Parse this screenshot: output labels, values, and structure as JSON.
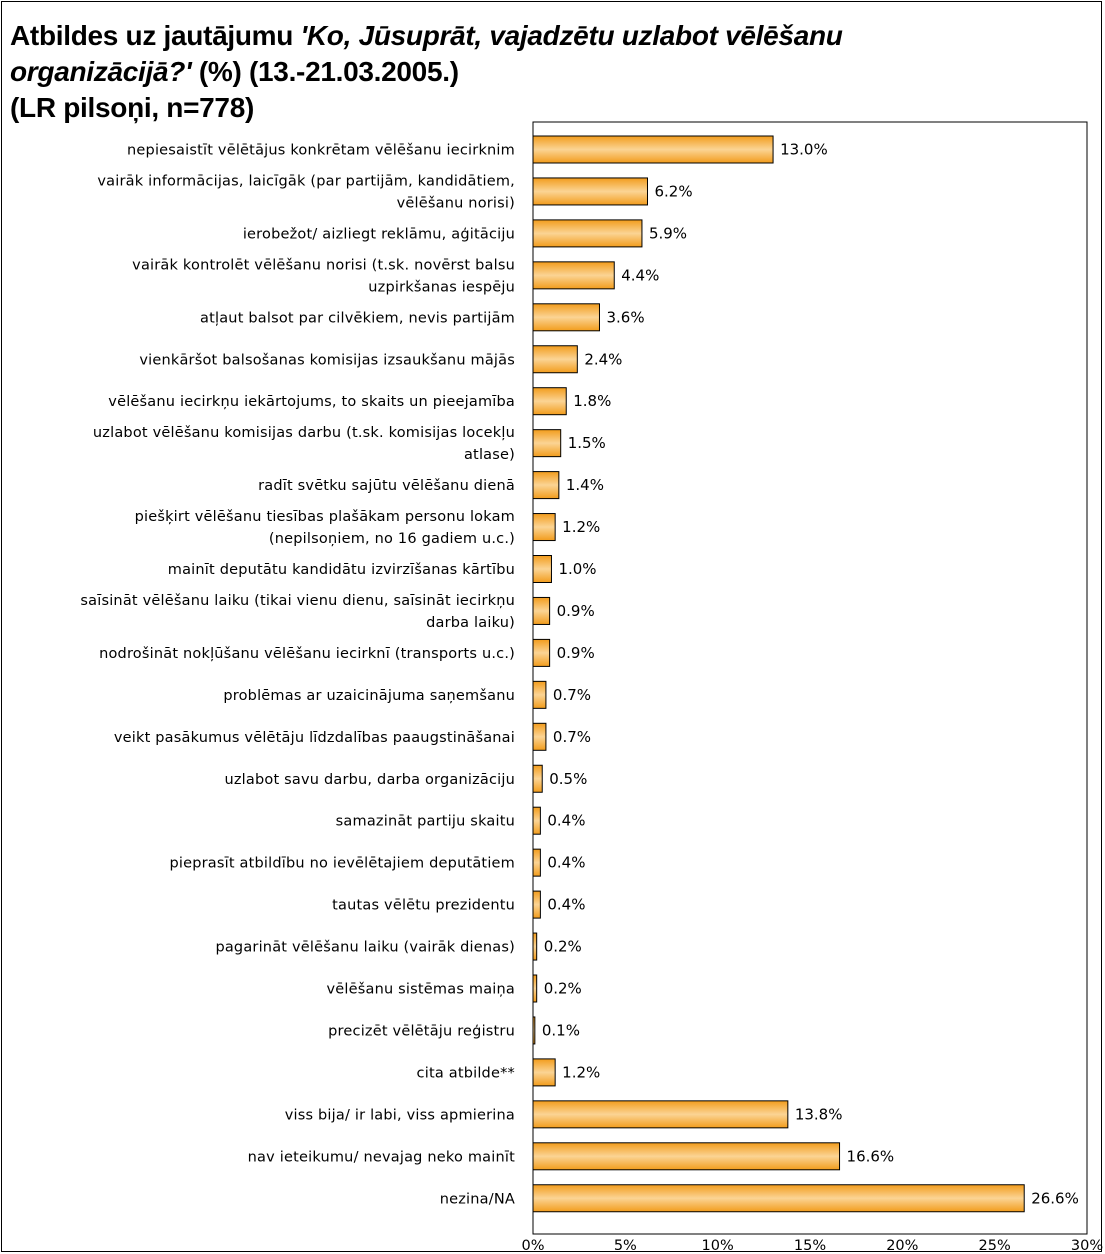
{
  "title": {
    "part1": "Atbildes uz jautājumu ",
    "question": "'Ko, Jūsuprāt, vajadzētu uzlabot vēlēšanu organizācijā?'",
    "part2": " (%) (13.-21.03.2005.)",
    "sample": "(LR pilsoņi, n=778)"
  },
  "colors": {
    "bar_fill": "#f29c1c",
    "bar_highlight": "#fbd494",
    "bar_stroke": "#000000"
  },
  "chart_data": {
    "type": "bar",
    "orientation": "horizontal",
    "title": "Atbildes uz jautājumu 'Ko, Jūsuprāt, vajadzētu uzlabot vēlēšanu organizācijā?' (%) (13.-21.03.2005.) (LR pilsoņi, n=778)",
    "xlim": [
      0,
      30
    ],
    "xticks": [
      "0%",
      "5%",
      "10%",
      "15%",
      "20%",
      "25%",
      "30%"
    ],
    "categories": [
      [
        "nepiesaistīt vēlētājus konkrētam vēlēšanu iecirknim"
      ],
      [
        "vairāk informācijas, laicīgāk (par partijām, kandidātiem,",
        "vēlēšanu norisi)"
      ],
      [
        "ierobežot/ aizliegt reklāmu, aģitāciju"
      ],
      [
        "vairāk kontrolēt vēlēšanu norisi (t.sk. novērst balsu",
        "uzpirkšanas iespēju"
      ],
      [
        "atļaut balsot par cilvēkiem, nevis partijām"
      ],
      [
        "vienkāršot balsošanas komisijas izsaukšanu mājās"
      ],
      [
        "vēlēšanu iecirkņu iekārtojums, to skaits un pieejamība"
      ],
      [
        "uzlabot vēlēšanu komisijas darbu (t.sk. komisijas locekļu",
        "atlase)"
      ],
      [
        "radīt svētku sajūtu vēlēšanu dienā"
      ],
      [
        "piešķirt vēlēšanu tiesības plašākam personu lokam",
        "(nepilsoņiem, no 16 gadiem u.c.)"
      ],
      [
        "mainīt deputātu kandidātu izvirzīšanas kārtību"
      ],
      [
        "saīsināt vēlēšanu laiku (tikai vienu dienu, saīsināt iecirkņu",
        "darba laiku)"
      ],
      [
        "nodrošināt nokļūšanu vēlēšanu iecirknī (transports u.c.)"
      ],
      [
        "problēmas ar uzaicinājuma saņemšanu"
      ],
      [
        "veikt pasākumus vēlētāju līdzdalības paaugstināšanai"
      ],
      [
        "uzlabot savu darbu, darba organizāciju"
      ],
      [
        "samazināt partiju skaitu"
      ],
      [
        "pieprasīt atbildību no ievēlētajiem deputātiem"
      ],
      [
        "tautas vēlētu prezidentu"
      ],
      [
        "pagarināt vēlēšanu laiku (vairāk dienas)"
      ],
      [
        "vēlēšanu sistēmas maiņa"
      ],
      [
        "precizēt vēlētāju reģistru"
      ],
      [
        "cita atbilde**"
      ],
      [
        "viss bija/ ir labi, viss apmierina"
      ],
      [
        "nav ieteikumu/ nevajag neko mainīt"
      ],
      [
        "nezina/NA"
      ]
    ],
    "values": [
      13.0,
      6.2,
      5.9,
      4.4,
      3.6,
      2.4,
      1.8,
      1.5,
      1.4,
      1.2,
      1.0,
      0.9,
      0.9,
      0.7,
      0.7,
      0.5,
      0.4,
      0.4,
      0.4,
      0.2,
      0.2,
      0.1,
      1.2,
      13.8,
      16.6,
      26.6
    ],
    "value_labels": [
      "13.0%",
      "6.2%",
      "5.9%",
      "4.4%",
      "3.6%",
      "2.4%",
      "1.8%",
      "1.5%",
      "1.4%",
      "1.2%",
      "1.0%",
      "0.9%",
      "0.9%",
      "0.7%",
      "0.7%",
      "0.5%",
      "0.4%",
      "0.4%",
      "0.4%",
      "0.2%",
      "0.2%",
      "0.1%",
      "1.2%",
      "13.8%",
      "16.6%",
      "26.6%"
    ],
    "grid": false,
    "legend": "none"
  }
}
